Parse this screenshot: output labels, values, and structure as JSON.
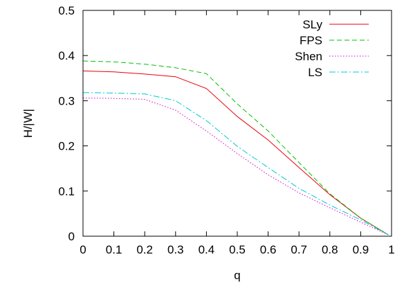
{
  "chart_data": {
    "type": "line",
    "xlabel": "q",
    "ylabel": "H/|W|",
    "xlim": [
      0,
      1
    ],
    "ylim": [
      0,
      0.5
    ],
    "x_ticks": [
      "0",
      "0.1",
      "0.2",
      "0.3",
      "0.4",
      "0.5",
      "0.6",
      "0.7",
      "0.8",
      "0.9",
      "1"
    ],
    "y_ticks": [
      "0",
      "0.1",
      "0.2",
      "0.3",
      "0.4",
      "0.5"
    ],
    "x_tick_values": [
      0,
      0.1,
      0.2,
      0.3,
      0.4,
      0.5,
      0.6,
      0.7,
      0.8,
      0.9,
      1.0
    ],
    "y_tick_values": [
      0,
      0.1,
      0.2,
      0.3,
      0.4,
      0.5
    ],
    "grid": false,
    "legend_position": "top-right",
    "series": [
      {
        "name": "SLy",
        "color": "#e8000b",
        "dash": "solid",
        "x": [
          0,
          0.1,
          0.2,
          0.3,
          0.4,
          0.5,
          0.6,
          0.7,
          0.8,
          0.9,
          0.99
        ],
        "y": [
          0.366,
          0.364,
          0.359,
          0.353,
          0.327,
          0.265,
          0.213,
          0.152,
          0.092,
          0.04,
          0.003
        ]
      },
      {
        "name": "FPS",
        "color": "#00c000",
        "dash": "dashed",
        "x": [
          0,
          0.1,
          0.2,
          0.3,
          0.4,
          0.5,
          0.6,
          0.7,
          0.8,
          0.9,
          0.99
        ],
        "y": [
          0.388,
          0.386,
          0.381,
          0.373,
          0.36,
          0.293,
          0.233,
          0.163,
          0.094,
          0.04,
          0.003
        ]
      },
      {
        "name": "Shen",
        "color": "#d000d0",
        "dash": "dotted",
        "x": [
          0,
          0.1,
          0.2,
          0.3,
          0.4,
          0.5,
          0.6,
          0.7,
          0.8,
          0.9,
          0.99
        ],
        "y": [
          0.306,
          0.305,
          0.303,
          0.279,
          0.233,
          0.183,
          0.136,
          0.096,
          0.063,
          0.031,
          0.003
        ]
      },
      {
        "name": "LS",
        "color": "#00c8d8",
        "dash": "dashdot",
        "x": [
          0,
          0.1,
          0.2,
          0.3,
          0.4,
          0.5,
          0.6,
          0.7,
          0.8,
          0.9,
          0.99
        ],
        "y": [
          0.318,
          0.317,
          0.315,
          0.3,
          0.256,
          0.199,
          0.152,
          0.106,
          0.069,
          0.036,
          0.003
        ]
      }
    ]
  }
}
